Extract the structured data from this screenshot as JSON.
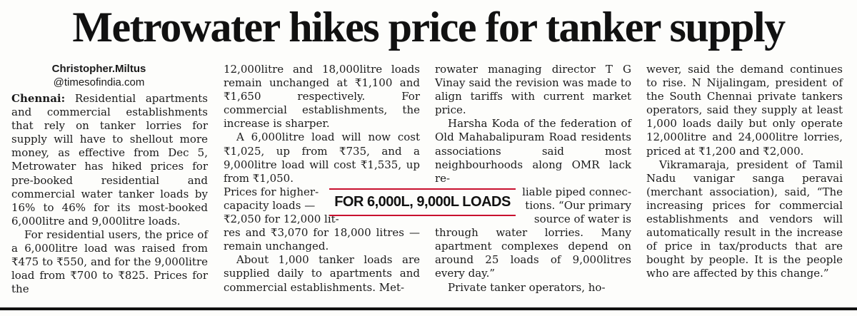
{
  "headline": "Metrowater hikes price for tanker supply",
  "byline": {
    "name": "Christopher.Miltus",
    "handle": "@timesofindia.com"
  },
  "dateline": "Chennai:",
  "pull_quote": "FOR 6,000L, 9,000L LOADS",
  "columns": {
    "col1": {
      "p1": "Residential apartments and commercial establishments that rely on tanker lorries for supply will have to shellout more money, as effective from Dec 5, Metrowater has hiked prices for pre-booked residential and commercial water tanker loads by 16% to 46% for its most-booked 6,000litre and 9,000litre loads.",
      "p2": "For residential users, the price of a 6,000litre load was raised from ₹475 to ₹550, and for the 9,000litre load from ₹700 to ₹825. Prices for the"
    },
    "col2": {
      "p1": "12,000litre and 18,000litre loads remain unchanged at ₹1,100 and ₹1,650 respectively. For commercial establishments, the increase is sharper.",
      "p2a": "A 6,000litre load will now cost ₹1,025, up from ₹735, and a 9,000litre load will cost ₹1,535, up from ₹1,050.",
      "p2b_line1": "Prices for higher-",
      "p2b_line2": "capacity loads —",
      "p2b_line3": "₹2,050 for 12,000 lit-",
      "p2b_rest": "res and ₹3,070 for 18,000 litres — remain unchanged.",
      "p3": "About 1,000 tanker loads are supplied daily to apartments and commercial establishments. Met-"
    },
    "col3": {
      "p1": "rowater managing director T G Vinay said the revision was made to align tariffs with current market price.",
      "p2a": "Harsha Koda of the federation of Old Mahabalipuram Road residents associations said most neighbourhoods along OMR lack re-",
      "p2b_line1": "liable piped connec-",
      "p2b_line2": "tions. “Our primary",
      "p2b_line3": "source of water is",
      "p2b_rest": "through water lorries. Many apartment complexes depend on around 25 loads of 9,000litres every day.”",
      "p3": "Private tanker operators, ho-"
    },
    "col4": {
      "p1": "wever, said the demand continues to rise. N Nijalingam, president of the South Chennai private tankers operators, said they supply at least 1,000 loads daily but only operate 12,000litre and 24,000litre lorries, priced at ₹1,200 and ₹2,000.",
      "p2": "Vikramaraja, president of Tamil Nadu vanigar sanga peravai (merchant association), said, “The increasing prices for commercial establishments and vendors will automatically result in the increase of price in tax/products that are bought by people. It is the people who are affected by this change.”"
    }
  }
}
